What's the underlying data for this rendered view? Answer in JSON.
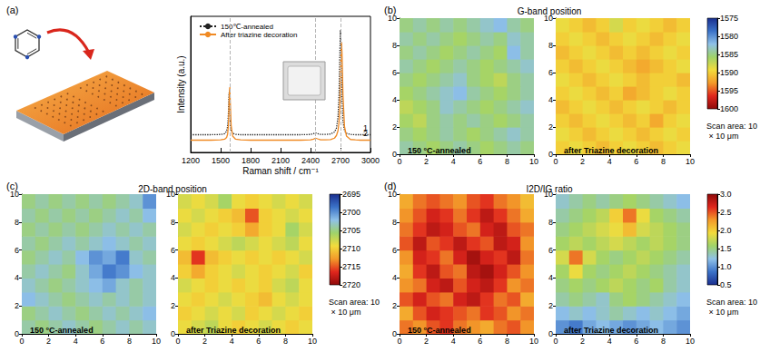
{
  "chart_data": [
    {
      "type": "line",
      "panel": "(a)",
      "xlabel": "Raman shift / cm⁻¹",
      "ylabel": "Intensity (a.u.)",
      "xlim": [
        1200,
        3000
      ],
      "xticks": [
        1200,
        1500,
        1800,
        2100,
        2400,
        2700,
        3000
      ],
      "ylim": [
        0,
        10
      ],
      "yticks": [],
      "tick_labels": "x",
      "grid": false,
      "legend": "upper left",
      "guide_lines": [
        1590,
        2450,
        2700
      ],
      "x": [
        1200,
        1300,
        1400,
        1500,
        1540,
        1560,
        1570,
        1578,
        1582,
        1585,
        1588,
        1592,
        1596,
        1605,
        1620,
        1650,
        1700,
        1800,
        1900,
        2000,
        2100,
        2200,
        2300,
        2400,
        2430,
        2450,
        2470,
        2500,
        2550,
        2600,
        2640,
        2660,
        2675,
        2685,
        2692,
        2700,
        2705,
        2710,
        2715,
        2725,
        2740,
        2760,
        2800,
        2850,
        2900,
        3000
      ],
      "series": [
        {
          "name": "150℃-annealed",
          "curve_label": "1",
          "color": "#222222",
          "line_style": "dotted",
          "values": [
            1.3,
            1.3,
            1.3,
            1.32,
            1.38,
            1.55,
            1.9,
            2.9,
            3.9,
            4.4,
            4.0,
            3.0,
            2.2,
            1.6,
            1.4,
            1.33,
            1.3,
            1.3,
            1.3,
            1.3,
            1.3,
            1.3,
            1.3,
            1.32,
            1.38,
            1.45,
            1.38,
            1.32,
            1.32,
            1.35,
            1.5,
            1.8,
            2.6,
            4.2,
            6.8,
            9.0,
            8.0,
            5.9,
            4.0,
            2.3,
            1.6,
            1.4,
            1.32,
            1.3,
            1.3,
            1.3
          ]
        },
        {
          "name": "After triazine decoration",
          "curve_label": "2",
          "color": "#f08a24",
          "line_style": "solid",
          "values": [
            0.9,
            0.9,
            0.9,
            0.92,
            0.97,
            1.1,
            1.35,
            2.0,
            2.8,
            3.7,
            4.5,
            4.8,
            3.8,
            2.0,
            1.2,
            0.97,
            0.92,
            0.9,
            0.9,
            0.9,
            0.9,
            0.9,
            0.9,
            0.92,
            0.98,
            1.05,
            1.0,
            0.93,
            0.92,
            0.94,
            1.05,
            1.25,
            1.6,
            2.2,
            3.2,
            5.3,
            7.0,
            8.1,
            7.3,
            4.2,
            1.9,
            1.2,
            0.95,
            0.92,
            0.9,
            0.9
          ]
        }
      ]
    },
    {
      "type": "heatmap",
      "panel": "(b)",
      "title": "G-band position",
      "scan_area": "Scan area: 10 × 10 μm",
      "xlim": [
        0,
        10
      ],
      "xticks": [
        0,
        2,
        4,
        6,
        8,
        10
      ],
      "ylim": [
        0,
        10
      ],
      "yticks": [
        0,
        2,
        4,
        6,
        8,
        10
      ],
      "clim": [
        1575,
        1600
      ],
      "cticks": [
        1575,
        1580,
        1585,
        1590,
        1595,
        1600
      ],
      "maps": [
        {
          "label": "150 °C-annealed",
          "cells": [
            [
              1584,
              1585,
              1586,
              1585,
              1584,
              1585,
              1586,
              1585,
              1584,
              1585
            ],
            [
              1585,
              1586,
              1585,
              1584,
              1585,
              1586,
              1585,
              1584,
              1583,
              1584
            ],
            [
              1586,
              1587,
              1585,
              1584,
              1585,
              1584,
              1585,
              1586,
              1585,
              1584
            ],
            [
              1587,
              1586,
              1585,
              1583,
              1584,
              1585,
              1586,
              1585,
              1584,
              1583
            ],
            [
              1586,
              1585,
              1584,
              1583,
              1582,
              1584,
              1585,
              1586,
              1585,
              1584
            ],
            [
              1585,
              1586,
              1585,
              1584,
              1583,
              1585,
              1586,
              1587,
              1585,
              1584
            ],
            [
              1584,
              1585,
              1586,
              1585,
              1584,
              1585,
              1586,
              1585,
              1584,
              1583
            ],
            [
              1585,
              1584,
              1585,
              1586,
              1585,
              1584,
              1585,
              1586,
              1582,
              1584
            ],
            [
              1584,
              1585,
              1584,
              1585,
              1586,
              1585,
              1584,
              1585,
              1583,
              1584
            ],
            [
              1585,
              1584,
              1585,
              1584,
              1585,
              1584,
              1583,
              1582,
              1584,
              1585
            ]
          ]
        },
        {
          "label": "after Triazine decoration",
          "cells": [
            [
              1590,
              1589,
              1590,
              1591,
              1590,
              1589,
              1590,
              1591,
              1590,
              1589
            ],
            [
              1589,
              1590,
              1591,
              1590,
              1589,
              1590,
              1591,
              1590,
              1589,
              1590
            ],
            [
              1590,
              1591,
              1590,
              1589,
              1590,
              1591,
              1590,
              1592,
              1590,
              1589
            ],
            [
              1591,
              1590,
              1589,
              1590,
              1591,
              1590,
              1589,
              1590,
              1591,
              1590
            ],
            [
              1590,
              1589,
              1590,
              1591,
              1590,
              1592,
              1591,
              1590,
              1589,
              1590
            ],
            [
              1589,
              1590,
              1591,
              1590,
              1589,
              1590,
              1591,
              1590,
              1590,
              1591
            ],
            [
              1590,
              1591,
              1590,
              1589,
              1590,
              1591,
              1592,
              1591,
              1590,
              1589
            ],
            [
              1591,
              1590,
              1589,
              1590,
              1591,
              1590,
              1591,
              1590,
              1589,
              1590
            ],
            [
              1590,
              1589,
              1590,
              1591,
              1590,
              1589,
              1590,
              1591,
              1590,
              1589
            ],
            [
              1589,
              1590,
              1591,
              1590,
              1588,
              1590,
              1589,
              1590,
              1591,
              1590
            ]
          ]
        }
      ]
    },
    {
      "type": "heatmap",
      "panel": "(c)",
      "title": "2D-band position",
      "scan_area": "Scan area: 10 × 10 μm",
      "xlim": [
        0,
        10
      ],
      "xticks": [
        0,
        2,
        4,
        6,
        8,
        10
      ],
      "ylim": [
        0,
        10
      ],
      "yticks": [
        0,
        2,
        4,
        6,
        8,
        10
      ],
      "clim": [
        2695,
        2720
      ],
      "cticks": [
        2695,
        2700,
        2705,
        2710,
        2715,
        2720
      ],
      "maps": [
        {
          "label": "150 °C-annealed",
          "cells": [
            [
              2704,
              2705,
              2704,
              2703,
              2704,
              2705,
              2704,
              2703,
              2704,
              2703
            ],
            [
              2705,
              2704,
              2703,
              2704,
              2705,
              2704,
              2703,
              2704,
              2703,
              2702
            ],
            [
              2702,
              2703,
              2704,
              2705,
              2704,
              2703,
              2704,
              2703,
              2704,
              2703
            ],
            [
              2703,
              2704,
              2705,
              2704,
              2703,
              2702,
              2701,
              2703,
              2704,
              2703
            ],
            [
              2704,
              2703,
              2704,
              2705,
              2703,
              2701,
              2699,
              2700,
              2702,
              2703
            ],
            [
              2705,
              2704,
              2703,
              2704,
              2702,
              2700,
              2701,
              2699,
              2703,
              2704
            ],
            [
              2704,
              2705,
              2704,
              2703,
              2704,
              2703,
              2702,
              2703,
              2704,
              2703
            ],
            [
              2705,
              2704,
              2705,
              2704,
              2705,
              2704,
              2703,
              2704,
              2703,
              2704
            ],
            [
              2704,
              2705,
              2704,
              2705,
              2704,
              2705,
              2704,
              2703,
              2704,
              2702
            ],
            [
              2705,
              2704,
              2705,
              2704,
              2705,
              2704,
              2705,
              2704,
              2703,
              2700
            ]
          ]
        },
        {
          "label": "after Triazine decoration",
          "cells": [
            [
              2709,
              2708,
              2707,
              2709,
              2710,
              2709,
              2708,
              2709,
              2710,
              2709
            ],
            [
              2710,
              2709,
              2708,
              2709,
              2708,
              2710,
              2709,
              2708,
              2709,
              2710
            ],
            [
              2709,
              2710,
              2709,
              2708,
              2709,
              2710,
              2711,
              2709,
              2708,
              2709
            ],
            [
              2708,
              2709,
              2710,
              2709,
              2710,
              2709,
              2710,
              2708,
              2707,
              2709
            ],
            [
              2710,
              2712,
              2710,
              2709,
              2708,
              2709,
              2710,
              2709,
              2708,
              2710
            ],
            [
              2711,
              2716,
              2711,
              2710,
              2709,
              2710,
              2709,
              2710,
              2709,
              2708
            ],
            [
              2709,
              2710,
              2709,
              2708,
              2707,
              2708,
              2709,
              2708,
              2707,
              2709
            ],
            [
              2708,
              2709,
              2710,
              2709,
              2710,
              2712,
              2710,
              2709,
              2706,
              2708
            ],
            [
              2709,
              2708,
              2709,
              2710,
              2711,
              2715,
              2710,
              2709,
              2708,
              2709
            ],
            [
              2708,
              2709,
              2708,
              2706,
              2709,
              2710,
              2709,
              2708,
              2709,
              2708
            ]
          ]
        }
      ]
    },
    {
      "type": "heatmap",
      "panel": "(d)",
      "title": "I2D/IG ratio",
      "scan_area": "Scan area: 10 × 10 μm",
      "xlim": [
        0,
        10
      ],
      "xticks": [
        0,
        2,
        4,
        6,
        8,
        10
      ],
      "ylim": [
        0,
        10
      ],
      "yticks": [
        0,
        2,
        4,
        6,
        8,
        10
      ],
      "clim": [
        0.5,
        3
      ],
      "cticks": [
        0.5,
        {
          "value": 1,
          "label": "1.0"
        },
        1.5,
        {
          "value": 2,
          "label": "2.0"
        },
        2.5,
        {
          "value": 3,
          "label": "3.0"
        }
      ],
      "maps": [
        {
          "label": "150 °C-annealed",
          "cells": [
            [
              2.4,
              2.3,
              2.5,
              2.6,
              2.4,
              2.3,
              2.2,
              2.4,
              2.5,
              2.3
            ],
            [
              2.2,
              2.5,
              2.7,
              2.6,
              2.5,
              2.4,
              2.6,
              2.5,
              2.3,
              2.4
            ],
            [
              2.5,
              2.7,
              2.5,
              2.4,
              2.7,
              2.8,
              2.6,
              2.4,
              2.5,
              2.2
            ],
            [
              2.3,
              2.4,
              2.7,
              2.8,
              2.5,
              2.7,
              2.8,
              2.6,
              2.3,
              2.4
            ],
            [
              2.2,
              2.6,
              2.8,
              2.5,
              2.4,
              2.8,
              2.9,
              2.7,
              2.5,
              2.3
            ],
            [
              2.3,
              2.7,
              2.6,
              2.4,
              2.7,
              2.9,
              2.7,
              2.6,
              2.8,
              2.4
            ],
            [
              2.5,
              2.8,
              2.5,
              2.6,
              2.8,
              2.6,
              2.5,
              2.8,
              2.7,
              2.3
            ],
            [
              2.4,
              2.6,
              2.8,
              2.7,
              2.5,
              2.4,
              2.7,
              2.8,
              2.5,
              2.4
            ],
            [
              2.3,
              2.5,
              2.7,
              2.6,
              2.4,
              2.6,
              2.8,
              2.6,
              2.4,
              2.2
            ],
            [
              2.2,
              2.4,
              2.5,
              2.4,
              2.3,
              2.5,
              2.6,
              2.4,
              2.3,
              2.1
            ]
          ]
        },
        {
          "label": "after Triazine decoration",
          "cells": [
            [
              1.0,
              0.9,
              1.1,
              1.2,
              1.1,
              1.0,
              1.1,
              1.2,
              1.1,
              1.0
            ],
            [
              1.2,
              1.3,
              1.2,
              1.3,
              1.4,
              1.3,
              1.2,
              1.3,
              1.2,
              1.1
            ],
            [
              1.4,
              1.5,
              1.4,
              1.3,
              1.5,
              1.6,
              1.5,
              1.4,
              1.3,
              1.2
            ],
            [
              1.5,
              1.6,
              1.5,
              1.6,
              1.7,
              1.6,
              1.5,
              1.6,
              1.4,
              1.3
            ],
            [
              1.6,
              1.9,
              1.6,
              1.5,
              1.6,
              1.7,
              1.6,
              1.5,
              1.4,
              1.3
            ],
            [
              1.8,
              2.4,
              1.8,
              1.6,
              1.5,
              1.6,
              1.7,
              1.6,
              1.5,
              1.4
            ],
            [
              1.6,
              1.7,
              1.6,
              1.7,
              1.8,
              1.7,
              1.6,
              1.7,
              1.6,
              1.5
            ],
            [
              1.5,
              1.6,
              1.7,
              1.8,
              1.9,
              2.1,
              1.8,
              1.7,
              1.6,
              1.5
            ],
            [
              1.4,
              1.5,
              1.6,
              1.7,
              2.0,
              2.4,
              1.9,
              1.6,
              1.5,
              1.4
            ],
            [
              1.3,
              1.4,
              1.5,
              1.4,
              1.5,
              1.6,
              1.5,
              1.4,
              1.3,
              1.2
            ]
          ]
        }
      ]
    }
  ]
}
